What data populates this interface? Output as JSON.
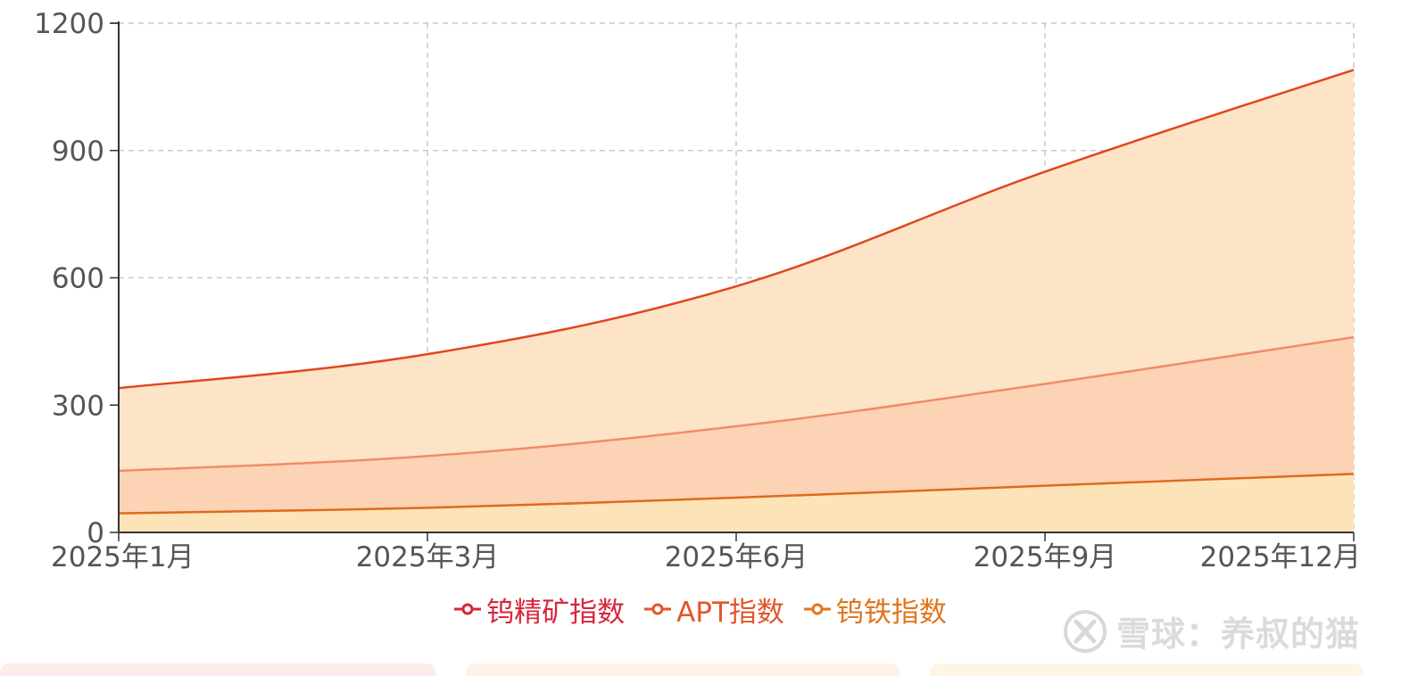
{
  "chart_data": {
    "type": "area",
    "x": [
      "2025年1月",
      "2025年3月",
      "2025年6月",
      "2025年9月",
      "2025年12月"
    ],
    "xticks": [
      "2025年1月",
      "2025年3月",
      "2025年6月",
      "2025年9月",
      "2025年12月"
    ],
    "ylim": [
      0,
      1200
    ],
    "yticks": [
      0,
      300,
      600,
      900,
      1200
    ],
    "grid": true,
    "legend_position": "bottom-center",
    "series": [
      {
        "name": "钨精矿指数",
        "values": [
          340,
          420,
          580,
          850,
          1090
        ],
        "line_color": "#e1461e",
        "fill_color": "#fde3c4"
      },
      {
        "name": "APT指数",
        "values": [
          145,
          180,
          250,
          350,
          460
        ],
        "line_color": "#f08c6c",
        "fill_color": "#fdd2b4"
      },
      {
        "name": "钨铁指数",
        "values": [
          45,
          58,
          82,
          110,
          138
        ],
        "line_color": "#e06a1e",
        "fill_color": "#fde5b8"
      }
    ]
  },
  "legend": [
    {
      "label": "钨精矿指数",
      "color": "#d7263d"
    },
    {
      "label": "APT指数",
      "color": "#e2562a"
    },
    {
      "label": "钨铁指数",
      "color": "#e0761e"
    }
  ],
  "watermark": {
    "text": "雪球：养叔的猫",
    "icon": "snowball-logo-icon"
  }
}
